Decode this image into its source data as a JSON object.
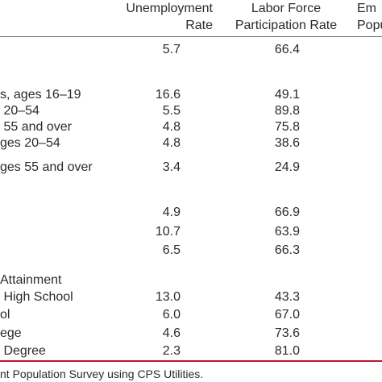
{
  "headers": {
    "unemployment": [
      "Unemployment",
      "Rate"
    ],
    "lfpr": [
      "Labor Force",
      "Participation Rate"
    ],
    "employment": [
      "Em",
      "Popu"
    ]
  },
  "rows": [
    {
      "label": "",
      "unemployment_rate": "5.7",
      "lfpr": "66.4"
    },
    {
      "label": "s, ages 16–19",
      "unemployment_rate": "16.6",
      "lfpr": "49.1"
    },
    {
      "label": " 20–54",
      "unemployment_rate": "5.5",
      "lfpr": "89.8"
    },
    {
      "label": " 55 and over",
      "unemployment_rate": "4.8",
      "lfpr": "75.8"
    },
    {
      "label": "ges 20–54",
      "unemployment_rate": "4.8",
      "lfpr": "38.6"
    },
    {
      "label": "ges 55 and over",
      "unemployment_rate": "3.4",
      "lfpr": "24.9"
    },
    {
      "label": "",
      "unemployment_rate": "4.9",
      "lfpr": "66.9"
    },
    {
      "label": "",
      "unemployment_rate": "10.7",
      "lfpr": "63.9"
    },
    {
      "label": "",
      "unemployment_rate": "6.5",
      "lfpr": "66.3"
    },
    {
      "label": "Attainment",
      "unemployment_rate": "",
      "lfpr": ""
    },
    {
      "label": " High School",
      "unemployment_rate": "13.0",
      "lfpr": "43.3"
    },
    {
      "label": "ol",
      "unemployment_rate": "6.0",
      "lfpr": "67.0"
    },
    {
      "label": "ege",
      "unemployment_rate": "4.6",
      "lfpr": "73.6"
    },
    {
      "label": " Degree",
      "unemployment_rate": "2.3",
      "lfpr": "81.0"
    }
  ],
  "source_note": "nt Population Survey using CPS Utilities.",
  "colors": {
    "text": "#2b2b2b",
    "top_rule": "#6b6b6b",
    "bottom_rule": "#c8102e"
  }
}
